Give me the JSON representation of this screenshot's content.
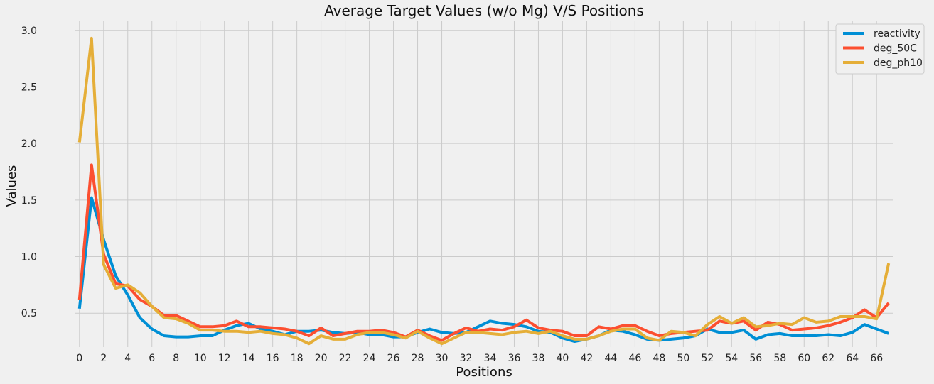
{
  "chart_data": {
    "type": "line",
    "title": "Average Target Values (w/o Mg) V/S Positions",
    "xlabel": "Positions",
    "ylabel": "Values",
    "xlim": [
      -0.4,
      67.4
    ],
    "ylim": [
      0.2,
      3.08
    ],
    "xticks": [
      0,
      2,
      4,
      6,
      8,
      10,
      12,
      14,
      16,
      18,
      20,
      22,
      24,
      26,
      28,
      30,
      32,
      34,
      36,
      38,
      40,
      42,
      44,
      46,
      48,
      50,
      52,
      54,
      56,
      58,
      60,
      62,
      64,
      66
    ],
    "yticks": [
      0.5,
      1.0,
      1.5,
      2.0,
      2.5,
      3.0
    ],
    "ytick_labels": [
      "0.5",
      "1.0",
      "1.5",
      "2.0",
      "2.5",
      "3.0"
    ],
    "grid": true,
    "legend_position": "top-right",
    "series": [
      {
        "name": "reactivity",
        "color": "#008fd5",
        "values": [
          0.54,
          1.52,
          1.15,
          0.83,
          0.66,
          0.46,
          0.36,
          0.3,
          0.29,
          0.29,
          0.3,
          0.3,
          0.35,
          0.39,
          0.41,
          0.36,
          0.34,
          0.31,
          0.34,
          0.34,
          0.35,
          0.33,
          0.32,
          0.33,
          0.31,
          0.31,
          0.29,
          0.29,
          0.33,
          0.36,
          0.33,
          0.32,
          0.33,
          0.38,
          0.43,
          0.41,
          0.4,
          0.38,
          0.34,
          0.33,
          0.28,
          0.25,
          0.27,
          0.3,
          0.35,
          0.34,
          0.31,
          0.27,
          0.26,
          0.27,
          0.28,
          0.3,
          0.36,
          0.33,
          0.33,
          0.35,
          0.27,
          0.31,
          0.32,
          0.3,
          0.3,
          0.3,
          0.31,
          0.3,
          0.33,
          0.4,
          0.36,
          0.32
        ]
      },
      {
        "name": "deg_50C",
        "color": "#fc4f30",
        "values": [
          0.62,
          1.81,
          1.02,
          0.76,
          0.74,
          0.62,
          0.56,
          0.48,
          0.48,
          0.43,
          0.38,
          0.38,
          0.39,
          0.43,
          0.38,
          0.38,
          0.37,
          0.36,
          0.34,
          0.3,
          0.37,
          0.3,
          0.32,
          0.34,
          0.34,
          0.35,
          0.33,
          0.29,
          0.35,
          0.3,
          0.26,
          0.32,
          0.37,
          0.34,
          0.36,
          0.35,
          0.38,
          0.44,
          0.37,
          0.35,
          0.34,
          0.3,
          0.3,
          0.38,
          0.36,
          0.39,
          0.39,
          0.34,
          0.3,
          0.32,
          0.33,
          0.34,
          0.35,
          0.43,
          0.41,
          0.43,
          0.35,
          0.42,
          0.4,
          0.35,
          0.36,
          0.37,
          0.39,
          0.42,
          0.46,
          0.53,
          0.46,
          0.59
        ]
      },
      {
        "name": "deg_ph10",
        "color": "#e5ae38",
        "values": [
          2.01,
          2.93,
          0.93,
          0.72,
          0.75,
          0.68,
          0.56,
          0.46,
          0.45,
          0.41,
          0.35,
          0.35,
          0.34,
          0.34,
          0.33,
          0.34,
          0.32,
          0.31,
          0.28,
          0.23,
          0.3,
          0.27,
          0.27,
          0.31,
          0.33,
          0.33,
          0.31,
          0.28,
          0.34,
          0.28,
          0.23,
          0.28,
          0.33,
          0.33,
          0.32,
          0.31,
          0.33,
          0.34,
          0.32,
          0.34,
          0.3,
          0.27,
          0.27,
          0.3,
          0.34,
          0.36,
          0.36,
          0.28,
          0.26,
          0.34,
          0.33,
          0.3,
          0.4,
          0.47,
          0.41,
          0.46,
          0.38,
          0.39,
          0.41,
          0.4,
          0.46,
          0.42,
          0.43,
          0.47,
          0.47,
          0.47,
          0.45,
          0.94
        ]
      }
    ]
  }
}
